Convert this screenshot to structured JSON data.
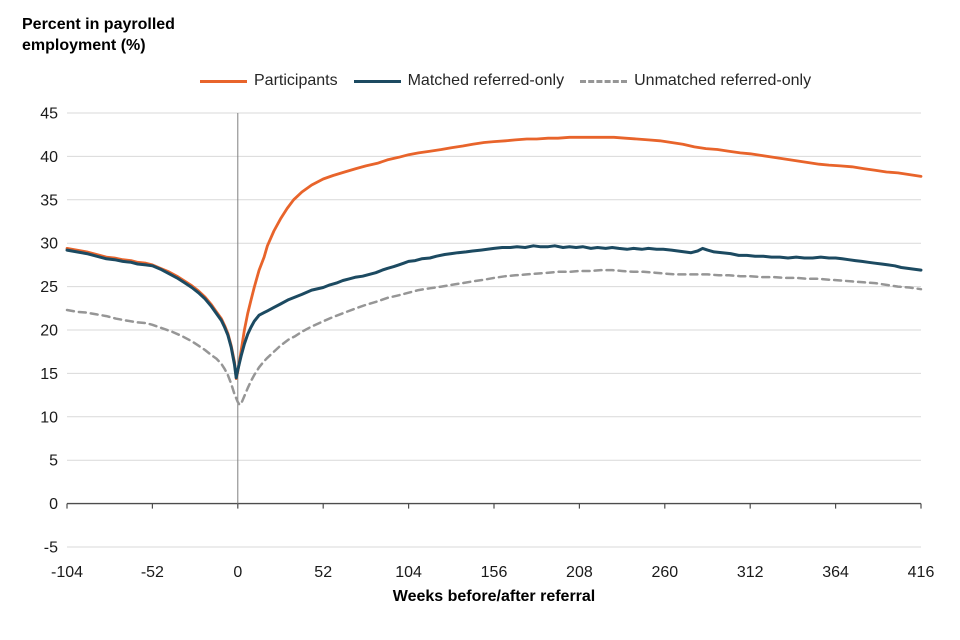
{
  "chart_data": {
    "type": "line",
    "title": "Percent in payrolled employment (%)",
    "title_lines": [
      "Percent in payrolled",
      "employment (%)"
    ],
    "xlabel": "Weeks before/after referral",
    "ylabel": "",
    "xlim": [
      -104,
      416
    ],
    "ylim": [
      -5,
      45
    ],
    "x_ticks": [
      -104,
      -52,
      0,
      52,
      104,
      156,
      208,
      260,
      312,
      364,
      416
    ],
    "y_ticks": [
      45,
      40,
      35,
      30,
      25,
      20,
      15,
      10,
      5,
      0,
      -5
    ],
    "grid": "horizontal-light",
    "gridline_color": "#d9d9d9",
    "zero_line_color": "#4d4d4d",
    "reference_line_x": 0,
    "reference_line_color": "#808080",
    "legend_position": "top",
    "series": [
      {
        "name": "Participants",
        "color": "#e8642b",
        "style": "solid",
        "width": 2.8,
        "points": [
          [
            -104,
            29.4
          ],
          [
            -98,
            29.2
          ],
          [
            -92,
            29.0
          ],
          [
            -86,
            28.7
          ],
          [
            -80,
            28.4
          ],
          [
            -75,
            28.3
          ],
          [
            -70,
            28.1
          ],
          [
            -65,
            28.0
          ],
          [
            -61,
            27.8
          ],
          [
            -56,
            27.7
          ],
          [
            -52,
            27.5
          ],
          [
            -47,
            27.1
          ],
          [
            -42,
            26.7
          ],
          [
            -37,
            26.2
          ],
          [
            -32,
            25.6
          ],
          [
            -28,
            25.1
          ],
          [
            -24,
            24.5
          ],
          [
            -20,
            23.8
          ],
          [
            -16,
            22.9
          ],
          [
            -13,
            22.1
          ],
          [
            -10,
            21.3
          ],
          [
            -8,
            20.5
          ],
          [
            -6,
            19.6
          ],
          [
            -4,
            18.2
          ],
          [
            -2,
            16.3
          ],
          [
            -1,
            14.4
          ],
          [
            0,
            15.2
          ],
          [
            2,
            17.6
          ],
          [
            4,
            20.0
          ],
          [
            6,
            21.9
          ],
          [
            8,
            23.4
          ],
          [
            10,
            24.9
          ],
          [
            13,
            26.9
          ],
          [
            16,
            28.4
          ],
          [
            18,
            29.7
          ],
          [
            22,
            31.4
          ],
          [
            26,
            32.8
          ],
          [
            30,
            34.0
          ],
          [
            34,
            35.0
          ],
          [
            39,
            35.9
          ],
          [
            45,
            36.7
          ],
          [
            52,
            37.4
          ],
          [
            58,
            37.8
          ],
          [
            65,
            38.2
          ],
          [
            72,
            38.6
          ],
          [
            78,
            38.9
          ],
          [
            85,
            39.2
          ],
          [
            91,
            39.6
          ],
          [
            98,
            39.9
          ],
          [
            104,
            40.2
          ],
          [
            110,
            40.4
          ],
          [
            117,
            40.6
          ],
          [
            124,
            40.8
          ],
          [
            130,
            41.0
          ],
          [
            137,
            41.2
          ],
          [
            143,
            41.4
          ],
          [
            150,
            41.6
          ],
          [
            156,
            41.7
          ],
          [
            163,
            41.8
          ],
          [
            169,
            41.9
          ],
          [
            176,
            42.0
          ],
          [
            182,
            42.0
          ],
          [
            189,
            42.1
          ],
          [
            195,
            42.1
          ],
          [
            202,
            42.2
          ],
          [
            208,
            42.2
          ],
          [
            215,
            42.2
          ],
          [
            222,
            42.2
          ],
          [
            229,
            42.2
          ],
          [
            236,
            42.1
          ],
          [
            243,
            42.0
          ],
          [
            250,
            41.9
          ],
          [
            257,
            41.8
          ],
          [
            264,
            41.6
          ],
          [
            271,
            41.4
          ],
          [
            278,
            41.1
          ],
          [
            285,
            40.9
          ],
          [
            292,
            40.8
          ],
          [
            299,
            40.6
          ],
          [
            306,
            40.4
          ],
          [
            312,
            40.3
          ],
          [
            319,
            40.1
          ],
          [
            326,
            39.9
          ],
          [
            333,
            39.7
          ],
          [
            340,
            39.5
          ],
          [
            347,
            39.3
          ],
          [
            354,
            39.1
          ],
          [
            360,
            39.0
          ],
          [
            367,
            38.9
          ],
          [
            374,
            38.8
          ],
          [
            381,
            38.6
          ],
          [
            388,
            38.4
          ],
          [
            395,
            38.2
          ],
          [
            402,
            38.1
          ],
          [
            409,
            37.9
          ],
          [
            416,
            37.7
          ]
        ]
      },
      {
        "name": "Matched referred-only",
        "color": "#1c4a61",
        "style": "solid",
        "width": 3,
        "points": [
          [
            -104,
            29.2
          ],
          [
            -98,
            29.0
          ],
          [
            -92,
            28.8
          ],
          [
            -86,
            28.5
          ],
          [
            -80,
            28.2
          ],
          [
            -75,
            28.1
          ],
          [
            -70,
            27.9
          ],
          [
            -65,
            27.8
          ],
          [
            -61,
            27.6
          ],
          [
            -56,
            27.5
          ],
          [
            -52,
            27.4
          ],
          [
            -47,
            27.0
          ],
          [
            -42,
            26.5
          ],
          [
            -37,
            26.0
          ],
          [
            -32,
            25.4
          ],
          [
            -28,
            24.9
          ],
          [
            -24,
            24.3
          ],
          [
            -20,
            23.6
          ],
          [
            -16,
            22.7
          ],
          [
            -13,
            21.9
          ],
          [
            -10,
            21.1
          ],
          [
            -8,
            20.3
          ],
          [
            -6,
            19.4
          ],
          [
            -4,
            18.0
          ],
          [
            -2,
            16.0
          ],
          [
            -1,
            14.5
          ],
          [
            0,
            15.4
          ],
          [
            2,
            17.0
          ],
          [
            4,
            18.4
          ],
          [
            6,
            19.5
          ],
          [
            8,
            20.3
          ],
          [
            10,
            21.0
          ],
          [
            13,
            21.7
          ],
          [
            16,
            22.0
          ],
          [
            18,
            22.2
          ],
          [
            22,
            22.6
          ],
          [
            26,
            23.0
          ],
          [
            31,
            23.5
          ],
          [
            35,
            23.8
          ],
          [
            39,
            24.1
          ],
          [
            45,
            24.6
          ],
          [
            52,
            24.9
          ],
          [
            56,
            25.2
          ],
          [
            60,
            25.4
          ],
          [
            64,
            25.7
          ],
          [
            68,
            25.9
          ],
          [
            72,
            26.1
          ],
          [
            76,
            26.2
          ],
          [
            80,
            26.4
          ],
          [
            84,
            26.6
          ],
          [
            88,
            26.9
          ],
          [
            91,
            27.1
          ],
          [
            95,
            27.3
          ],
          [
            98,
            27.5
          ],
          [
            101,
            27.7
          ],
          [
            104,
            27.9
          ],
          [
            108,
            28.0
          ],
          [
            112,
            28.2
          ],
          [
            117,
            28.3
          ],
          [
            121,
            28.5
          ],
          [
            126,
            28.7
          ],
          [
            130,
            28.8
          ],
          [
            134,
            28.9
          ],
          [
            139,
            29.0
          ],
          [
            143,
            29.1
          ],
          [
            148,
            29.2
          ],
          [
            152,
            29.3
          ],
          [
            156,
            29.4
          ],
          [
            161,
            29.5
          ],
          [
            166,
            29.5
          ],
          [
            170,
            29.6
          ],
          [
            175,
            29.5
          ],
          [
            180,
            29.7
          ],
          [
            184,
            29.6
          ],
          [
            189,
            29.6
          ],
          [
            193,
            29.7
          ],
          [
            198,
            29.5
          ],
          [
            202,
            29.6
          ],
          [
            206,
            29.5
          ],
          [
            210,
            29.6
          ],
          [
            215,
            29.4
          ],
          [
            219,
            29.5
          ],
          [
            224,
            29.4
          ],
          [
            228,
            29.5
          ],
          [
            232,
            29.4
          ],
          [
            237,
            29.3
          ],
          [
            241,
            29.4
          ],
          [
            246,
            29.3
          ],
          [
            250,
            29.4
          ],
          [
            255,
            29.3
          ],
          [
            259,
            29.3
          ],
          [
            264,
            29.2
          ],
          [
            268,
            29.1
          ],
          [
            272,
            29.0
          ],
          [
            276,
            28.9
          ],
          [
            280,
            29.1
          ],
          [
            283,
            29.4
          ],
          [
            286,
            29.2
          ],
          [
            290,
            29.0
          ],
          [
            295,
            28.9
          ],
          [
            300,
            28.8
          ],
          [
            305,
            28.6
          ],
          [
            310,
            28.6
          ],
          [
            315,
            28.5
          ],
          [
            320,
            28.5
          ],
          [
            325,
            28.4
          ],
          [
            330,
            28.4
          ],
          [
            335,
            28.3
          ],
          [
            340,
            28.4
          ],
          [
            345,
            28.3
          ],
          [
            350,
            28.3
          ],
          [
            355,
            28.4
          ],
          [
            360,
            28.3
          ],
          [
            364,
            28.3
          ],
          [
            368,
            28.2
          ],
          [
            372,
            28.1
          ],
          [
            376,
            28.0
          ],
          [
            380,
            27.9
          ],
          [
            384,
            27.8
          ],
          [
            388,
            27.7
          ],
          [
            392,
            27.6
          ],
          [
            396,
            27.5
          ],
          [
            400,
            27.4
          ],
          [
            404,
            27.2
          ],
          [
            408,
            27.1
          ],
          [
            412,
            27.0
          ],
          [
            416,
            26.9
          ]
        ]
      },
      {
        "name": "Unmatched referred-only",
        "color": "#969696",
        "style": "dashed",
        "width": 2.5,
        "points": [
          [
            -104,
            22.3
          ],
          [
            -98,
            22.1
          ],
          [
            -92,
            22.0
          ],
          [
            -86,
            21.8
          ],
          [
            -80,
            21.6
          ],
          [
            -74,
            21.3
          ],
          [
            -68,
            21.1
          ],
          [
            -62,
            20.9
          ],
          [
            -56,
            20.8
          ],
          [
            -52,
            20.6
          ],
          [
            -46,
            20.2
          ],
          [
            -40,
            19.8
          ],
          [
            -34,
            19.3
          ],
          [
            -28,
            18.7
          ],
          [
            -24,
            18.2
          ],
          [
            -20,
            17.7
          ],
          [
            -16,
            17.1
          ],
          [
            -13,
            16.7
          ],
          [
            -10,
            16.1
          ],
          [
            -8,
            15.5
          ],
          [
            -6,
            14.8
          ],
          [
            -4,
            13.8
          ],
          [
            -2,
            12.6
          ],
          [
            0,
            11.7
          ],
          [
            1,
            11.4
          ],
          [
            2,
            11.5
          ],
          [
            4,
            12.4
          ],
          [
            6,
            13.3
          ],
          [
            8,
            14.1
          ],
          [
            10,
            14.8
          ],
          [
            13,
            15.7
          ],
          [
            16,
            16.4
          ],
          [
            18,
            16.8
          ],
          [
            22,
            17.5
          ],
          [
            26,
            18.2
          ],
          [
            31,
            18.9
          ],
          [
            35,
            19.3
          ],
          [
            39,
            19.8
          ],
          [
            45,
            20.4
          ],
          [
            52,
            21.0
          ],
          [
            58,
            21.5
          ],
          [
            65,
            22.0
          ],
          [
            72,
            22.5
          ],
          [
            78,
            22.9
          ],
          [
            85,
            23.3
          ],
          [
            91,
            23.7
          ],
          [
            98,
            24.0
          ],
          [
            104,
            24.3
          ],
          [
            110,
            24.6
          ],
          [
            117,
            24.8
          ],
          [
            124,
            25.0
          ],
          [
            130,
            25.2
          ],
          [
            137,
            25.4
          ],
          [
            143,
            25.6
          ],
          [
            150,
            25.8
          ],
          [
            156,
            26.0
          ],
          [
            163,
            26.2
          ],
          [
            169,
            26.3
          ],
          [
            176,
            26.4
          ],
          [
            182,
            26.5
          ],
          [
            189,
            26.6
          ],
          [
            195,
            26.7
          ],
          [
            202,
            26.7
          ],
          [
            208,
            26.8
          ],
          [
            215,
            26.8
          ],
          [
            221,
            26.9
          ],
          [
            228,
            26.9
          ],
          [
            234,
            26.8
          ],
          [
            241,
            26.7
          ],
          [
            247,
            26.7
          ],
          [
            254,
            26.6
          ],
          [
            260,
            26.5
          ],
          [
            267,
            26.4
          ],
          [
            273,
            26.4
          ],
          [
            280,
            26.4
          ],
          [
            286,
            26.4
          ],
          [
            293,
            26.3
          ],
          [
            299,
            26.3
          ],
          [
            306,
            26.2
          ],
          [
            312,
            26.2
          ],
          [
            319,
            26.1
          ],
          [
            326,
            26.1
          ],
          [
            333,
            26.0
          ],
          [
            340,
            26.0
          ],
          [
            347,
            25.9
          ],
          [
            354,
            25.9
          ],
          [
            360,
            25.8
          ],
          [
            367,
            25.7
          ],
          [
            374,
            25.6
          ],
          [
            381,
            25.5
          ],
          [
            388,
            25.4
          ],
          [
            395,
            25.2
          ],
          [
            402,
            25.0
          ],
          [
            409,
            24.9
          ],
          [
            416,
            24.7
          ]
        ]
      }
    ]
  }
}
